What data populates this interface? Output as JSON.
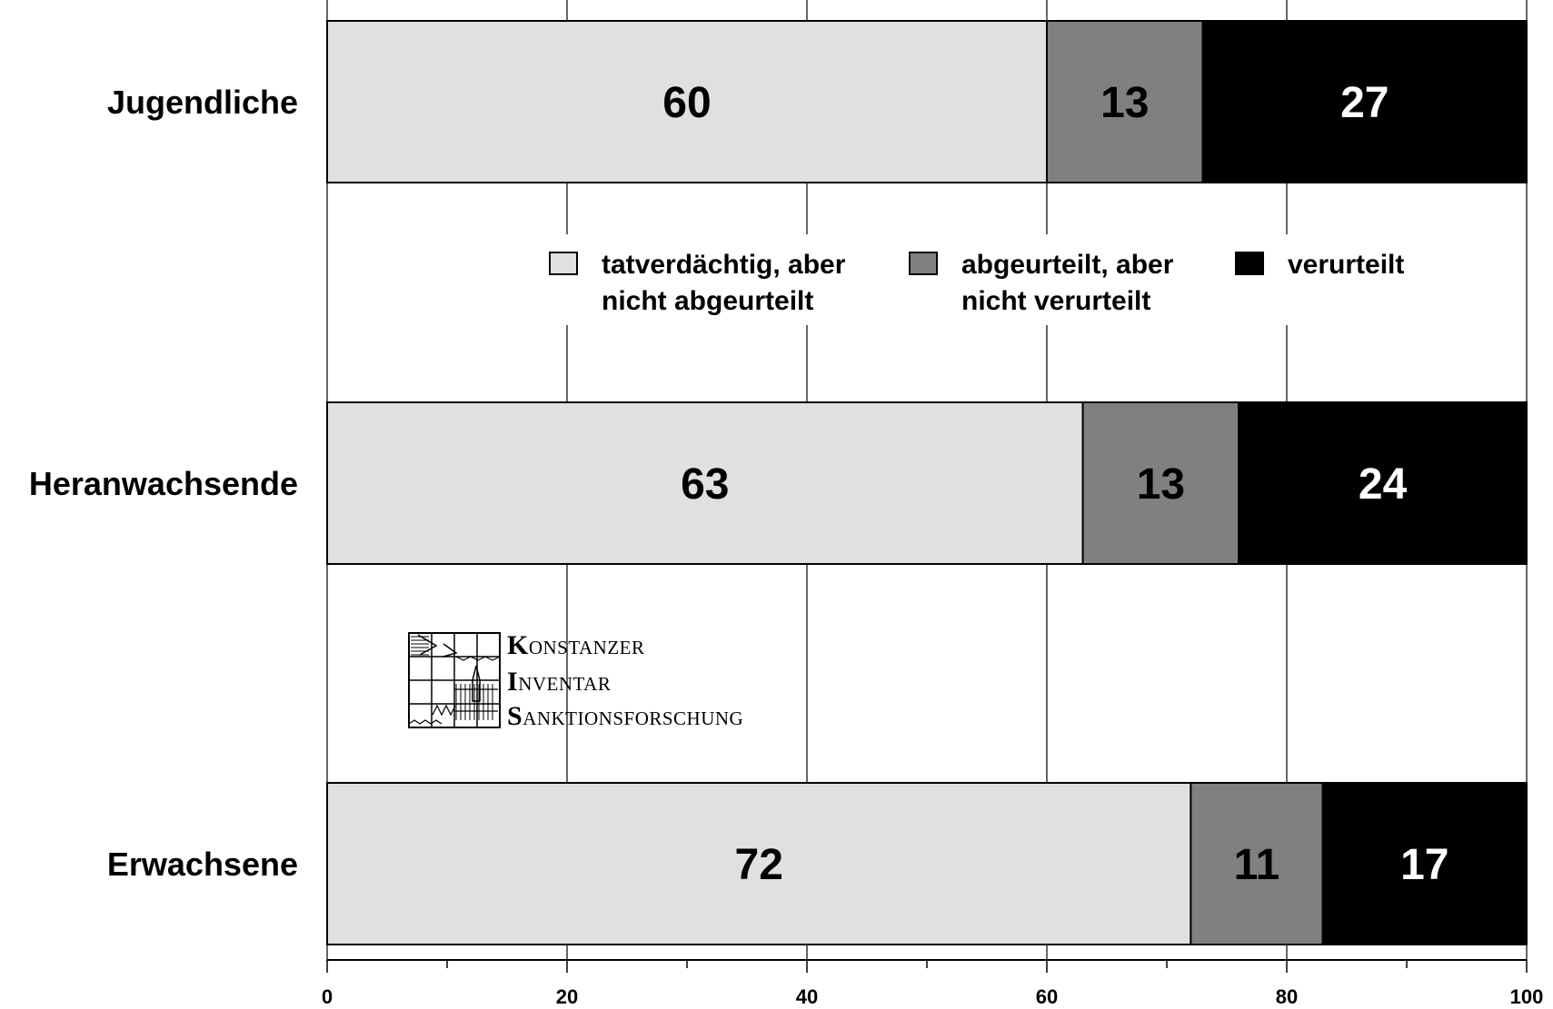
{
  "chart_data": {
    "type": "bar",
    "orientation": "horizontal",
    "stacked": true,
    "categories": [
      "Jugendliche",
      "Heranwachsende",
      "Erwachsene"
    ],
    "series": [
      {
        "name": "tatverdächtig, aber nicht abgeurteilt",
        "values": [
          60,
          63,
          72
        ],
        "color": "#e0e0e0",
        "text_color": "#000000"
      },
      {
        "name": "abgeurteilt, aber nicht verurteilt",
        "values": [
          13,
          13,
          11
        ],
        "color": "#808080",
        "text_color": "#000000"
      },
      {
        "name": "verurteilt",
        "values": [
          27,
          24,
          17
        ],
        "color": "#000000",
        "text_color": "#ffffff"
      }
    ],
    "legend_lines": [
      [
        "tatverdächtig, aber",
        "nicht abgeurteilt"
      ],
      [
        "abgeurteilt, aber",
        "nicht verurteilt"
      ],
      [
        "verurteilt"
      ]
    ],
    "xlim": [
      0,
      100
    ],
    "x_ticks": [
      0,
      20,
      40,
      60,
      80,
      100
    ],
    "x_tick_labels": [
      "0",
      "20",
      "40",
      "60",
      "80",
      "100"
    ],
    "grid": true,
    "legend_position": "center"
  },
  "logo": {
    "lines": [
      {
        "initial": "K",
        "rest": "ONSTANZER"
      },
      {
        "initial": "I",
        "rest": "NVENTAR"
      },
      {
        "initial": "S",
        "rest": "ANKTIONSFORSCHUNG"
      }
    ]
  }
}
